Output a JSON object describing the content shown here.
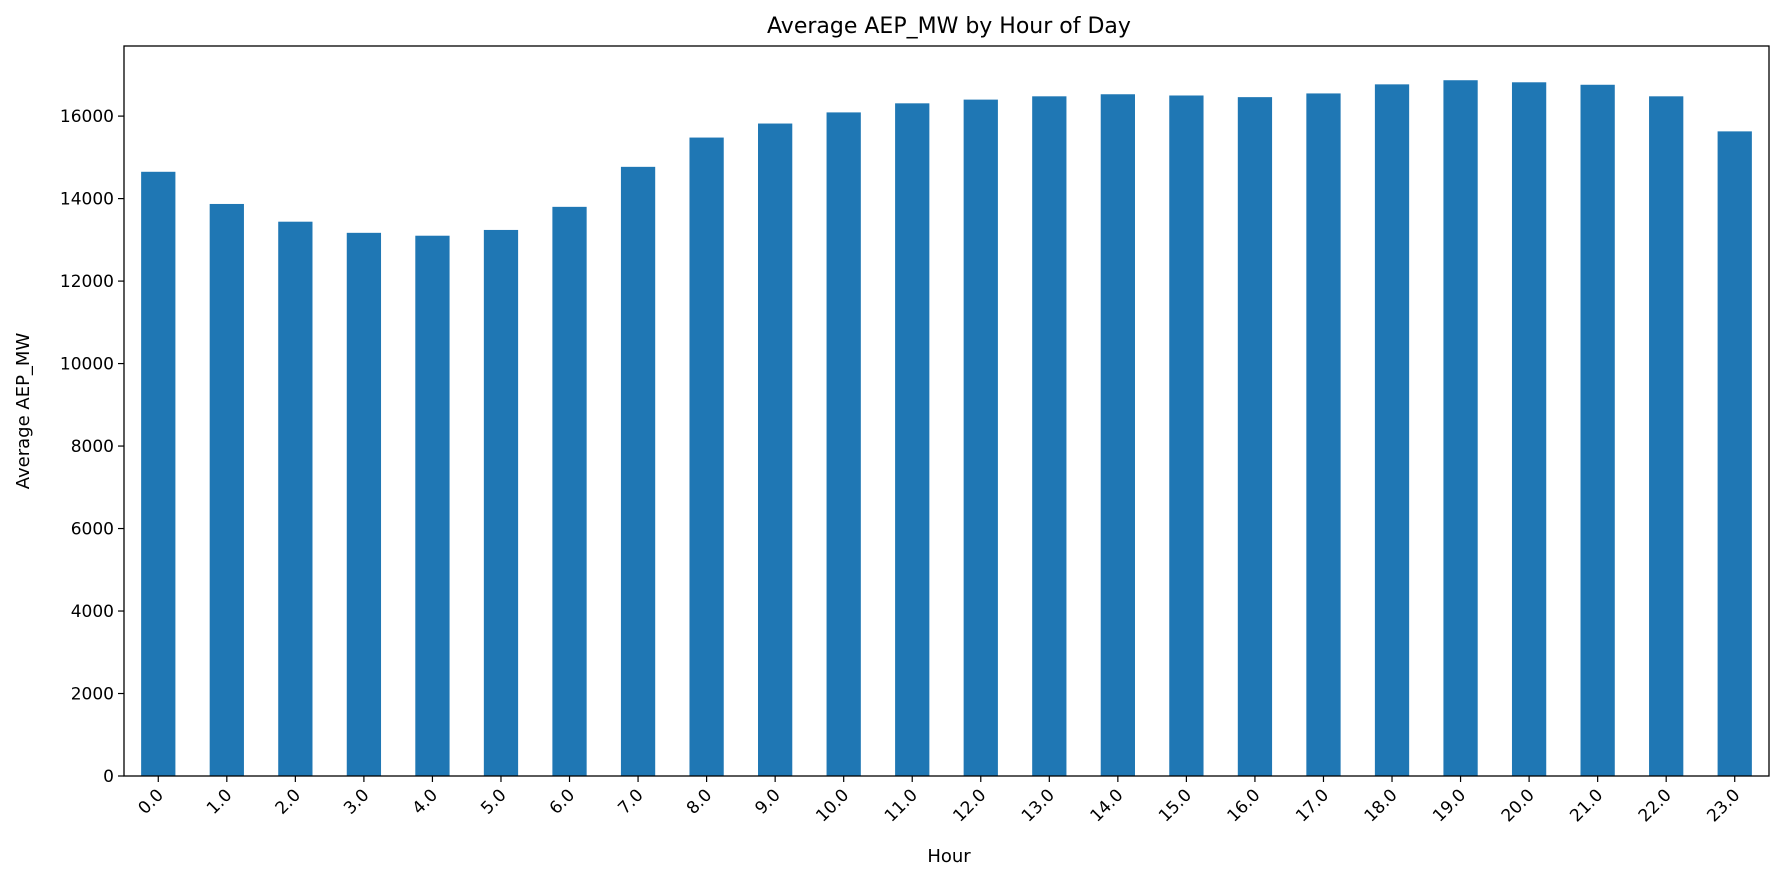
{
  "chart_data": {
    "type": "bar",
    "title": "Average AEP_MW by Hour of Day",
    "xlabel": "Hour",
    "ylabel": "Average AEP_MW",
    "categories": [
      "0.0",
      "1.0",
      "2.0",
      "3.0",
      "4.0",
      "5.0",
      "6.0",
      "7.0",
      "8.0",
      "9.0",
      "10.0",
      "11.0",
      "12.0",
      "13.0",
      "14.0",
      "15.0",
      "16.0",
      "17.0",
      "18.0",
      "19.0",
      "20.0",
      "21.0",
      "22.0",
      "23.0"
    ],
    "values": [
      14650,
      13870,
      13440,
      13170,
      13100,
      13240,
      13800,
      14770,
      15480,
      15820,
      16090,
      16310,
      16400,
      16480,
      16530,
      16500,
      16460,
      16550,
      16770,
      16870,
      16820,
      16760,
      16480,
      15630
    ],
    "ylim": [
      0,
      17700
    ],
    "yticks": [
      0,
      2000,
      4000,
      6000,
      8000,
      10000,
      12000,
      14000,
      16000
    ],
    "grid": false,
    "legend": "none",
    "bar_color": "#1f77b4"
  }
}
